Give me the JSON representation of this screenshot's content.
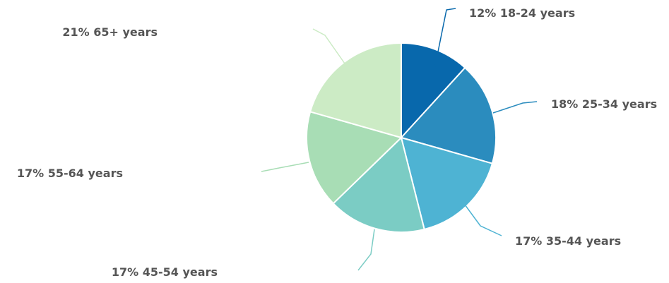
{
  "chart_data": {
    "type": "pie",
    "title": "",
    "start_angle_deg": 0,
    "direction": "clockwise",
    "slices": [
      {
        "label": "12% 18-24 years",
        "category": "18-24 years",
        "value": 12,
        "color": "#0868ac"
      },
      {
        "label": "18% 25-34 years",
        "category": "25-34 years",
        "value": 18,
        "color": "#2b8cbe"
      },
      {
        "label": "17% 35-44 years",
        "category": "35-44 years",
        "value": 17,
        "color": "#4eb3d3"
      },
      {
        "label": "17% 45-54 years",
        "category": "45-54 years",
        "value": 17,
        "color": "#7bccc4"
      },
      {
        "label": "17% 55-64 years",
        "category": "55-64 years",
        "value": 17,
        "color": "#a8ddb5"
      },
      {
        "label": "21% 65+ years",
        "category": "65+ years",
        "value": 21,
        "color": "#ccebc5"
      }
    ],
    "label_color": "#555555"
  }
}
